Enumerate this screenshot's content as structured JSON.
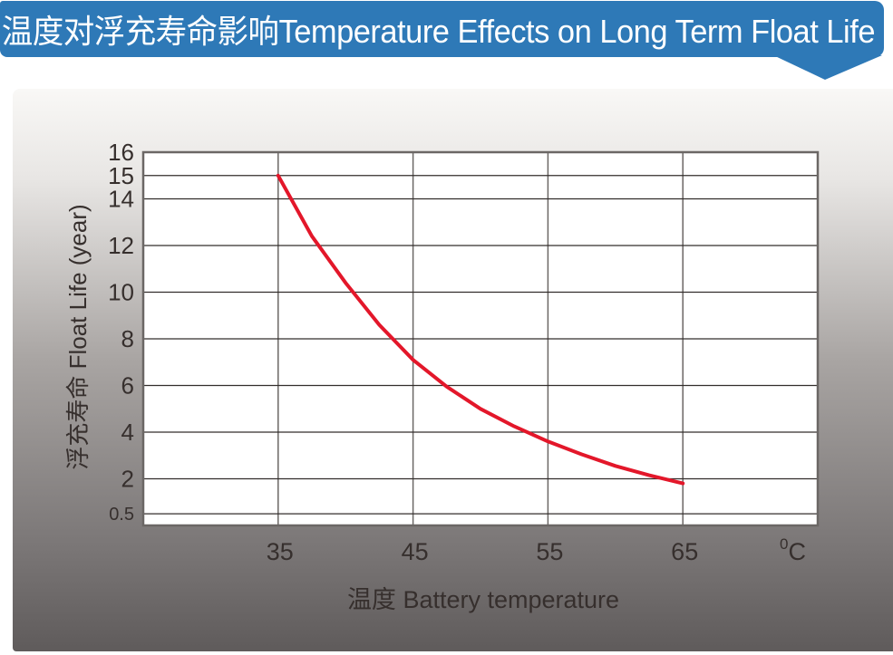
{
  "banner": {
    "title": "温度对浮充寿命影响Temperature Effects on Long Term Float Life",
    "bg_color": "#2e79b7",
    "text_color": "#ffffff"
  },
  "chart_data": {
    "type": "line",
    "title": "温度对浮充寿命影响Temperature Effects on Long Term Float Life",
    "xlabel": "温度  Battery temperature",
    "ylabel": "浮充寿命  Float Life (year)",
    "x_unit": {
      "sup": "0",
      "main": "C"
    },
    "xlim": [
      25,
      75
    ],
    "ylim": [
      0,
      16
    ],
    "x_ticks": [
      35,
      45,
      55,
      65
    ],
    "y_ticks": [
      16,
      15,
      14,
      12,
      10,
      8,
      6,
      4,
      2,
      0.5
    ],
    "grid": true,
    "legend": "none",
    "series": [
      {
        "name": "float-life-curve",
        "color": "#e3172a",
        "points": [
          [
            35,
            15.0
          ],
          [
            37.5,
            12.4
          ],
          [
            40,
            10.4
          ],
          [
            42.5,
            8.6
          ],
          [
            45,
            7.1
          ],
          [
            47.5,
            5.95
          ],
          [
            50,
            5.0
          ],
          [
            52.5,
            4.25
          ],
          [
            55,
            3.6
          ],
          [
            57.5,
            3.05
          ],
          [
            60,
            2.55
          ],
          [
            62.5,
            2.15
          ],
          [
            65,
            1.8
          ]
        ]
      }
    ],
    "colors": {
      "plot_bg": "#ffffff",
      "h_grid": "#332e2c",
      "v_grid": "#6b6765",
      "border": "#6b6765",
      "label": "#362f2d"
    }
  }
}
